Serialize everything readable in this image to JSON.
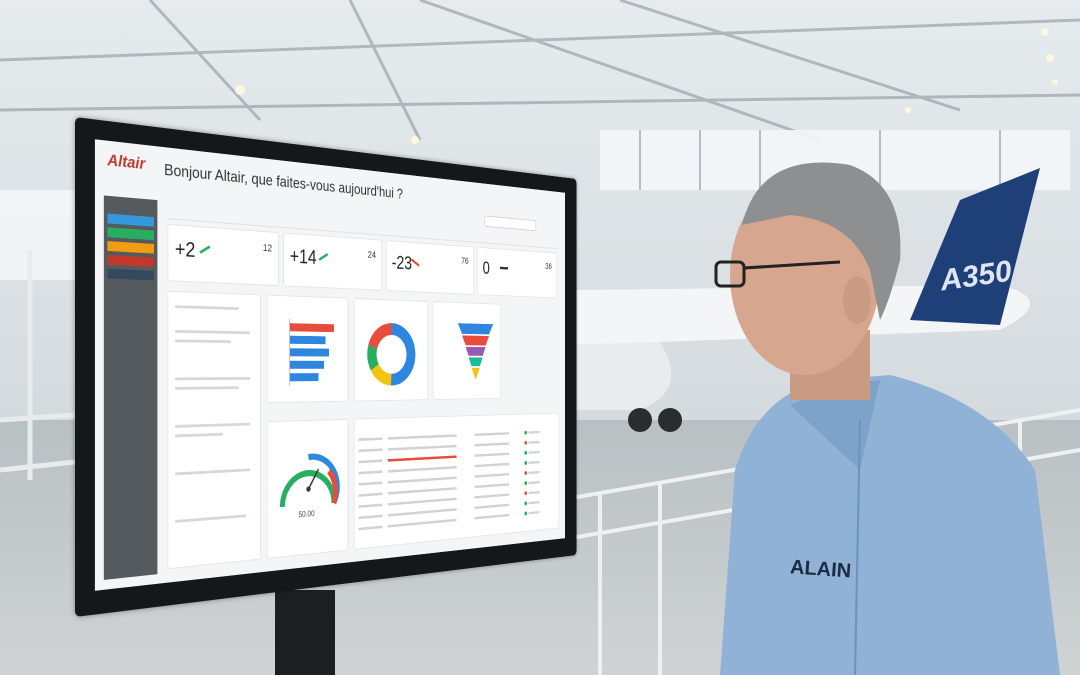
{
  "screen": {
    "logo": "Altair",
    "greeting": "Bonjour Altair, que faites-vous aujourd'hui ?",
    "kpis": [
      {
        "delta": "+2",
        "count": "12"
      },
      {
        "delta": "+14",
        "count": "24"
      },
      {
        "delta": "-23",
        "count": "76"
      },
      {
        "delta": "0",
        "count": "36"
      }
    ],
    "gauge_value": "50.00"
  },
  "tail_label": "A350",
  "shirt_label": "ALAIN"
}
